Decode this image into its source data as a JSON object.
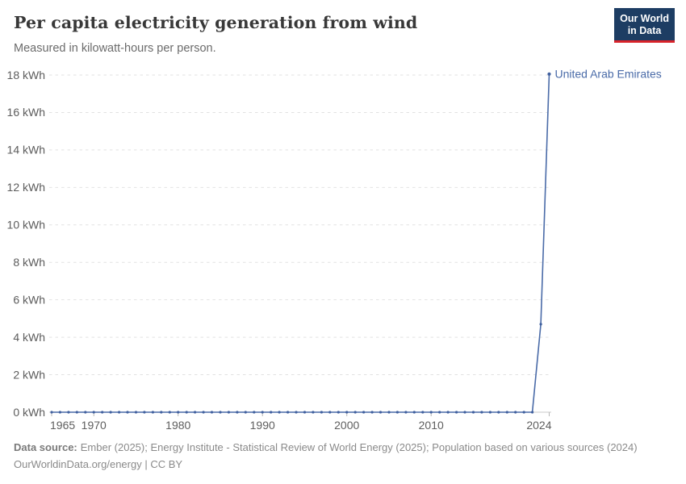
{
  "header": {
    "title": "Per capita electricity generation from wind",
    "subtitle": "Measured in kilowatt-hours per person.",
    "logo": {
      "line1": "Our World",
      "line2": "in Data",
      "bg_color": "#1d3d63",
      "accent_color": "#d8232a"
    }
  },
  "chart_data": {
    "type": "line",
    "title": "Per capita electricity generation from wind",
    "subtitle": "Measured in kilowatt-hours per person.",
    "grid": true,
    "legend_position": "label-at-line-end",
    "x_axis": {
      "min": 1965,
      "max": 2024,
      "ticks": [
        1965,
        1970,
        1980,
        1990,
        2000,
        2010,
        2024
      ]
    },
    "y_axis": {
      "min": 0,
      "max": 18,
      "step": 2,
      "unit": "kWh",
      "tick_labels": [
        "0 kWh",
        "2 kWh",
        "4 kWh",
        "6 kWh",
        "8 kWh",
        "10 kWh",
        "12 kWh",
        "14 kWh",
        "16 kWh",
        "18 kWh"
      ]
    },
    "series": [
      {
        "name": "United Arab Emirates",
        "color": "#4a6ba8",
        "marker_color": "#3f5f9e",
        "start_year": 1965,
        "end_year": 2024,
        "values": [
          0,
          0,
          0,
          0,
          0,
          0,
          0,
          0,
          0,
          0,
          0,
          0,
          0,
          0,
          0,
          0,
          0,
          0,
          0,
          0,
          0,
          0,
          0,
          0,
          0,
          0,
          0,
          0,
          0,
          0,
          0,
          0,
          0,
          0,
          0,
          0,
          0,
          0,
          0,
          0,
          0,
          0,
          0,
          0,
          0,
          0,
          0,
          0,
          0,
          0,
          0,
          0,
          0,
          0,
          0,
          0,
          0,
          0,
          4.7,
          18.05
        ]
      }
    ]
  },
  "footer": {
    "source_label": "Data source:",
    "sources": "Ember (2025); Energy Institute - Statistical Review of World Energy (2025); Population based on various sources (2024)",
    "link": "OurWorldinData.org/energy | CC BY"
  }
}
